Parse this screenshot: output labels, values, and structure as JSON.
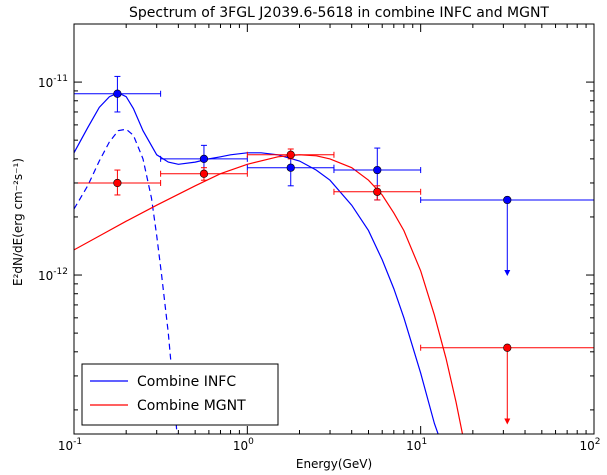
{
  "chart_data": {
    "type": "scatter",
    "title": "Spectrum of 3FGL J2039.6-5618 in combine INFC and MGNT",
    "xlabel": "Energy(GeV)",
    "ylabel": "E²dN/dE(erg cm⁻²s⁻¹)",
    "xscale": "log",
    "yscale": "log",
    "xlim": [
      0.1,
      100
    ],
    "ylim": [
      1.5e-13,
      2e-11
    ],
    "x_ticks": [
      {
        "value": 0.1,
        "base": "10",
        "exp": "-1"
      },
      {
        "value": 1,
        "base": "10",
        "exp": "0"
      },
      {
        "value": 10,
        "base": "10",
        "exp": "1"
      },
      {
        "value": 100,
        "base": "10",
        "exp": "2"
      }
    ],
    "y_ticks": [
      {
        "value": 1e-12,
        "base": "10",
        "exp": "-12"
      },
      {
        "value": 1e-11,
        "base": "10",
        "exp": "-11"
      }
    ],
    "legend_position": "lower-left",
    "series": [
      {
        "name": "Combine INFC",
        "color": "#0000ff",
        "points": [
          {
            "x": 0.178,
            "y": 8.7e-12,
            "xlo": 0.1,
            "xhi": 0.316,
            "ylo": 7e-12,
            "yhi": 1.07e-11
          },
          {
            "x": 0.562,
            "y": 4e-12,
            "xlo": 0.316,
            "xhi": 1.0,
            "ylo": 3.35e-12,
            "yhi": 4.7e-12
          },
          {
            "x": 1.78,
            "y": 3.6e-12,
            "xlo": 1.0,
            "xhi": 3.16,
            "ylo": 2.9e-12,
            "yhi": 4.3e-12
          },
          {
            "x": 5.62,
            "y": 3.5e-12,
            "xlo": 3.16,
            "xhi": 10.0,
            "ylo": 2.45e-12,
            "yhi": 4.55e-12
          }
        ],
        "upper_limits": [
          {
            "x": 31.6,
            "y": 2.45e-12,
            "xlo": 10.0,
            "xhi": 100.0,
            "arrow_to": 1e-12
          }
        ]
      },
      {
        "name": "Combine MGNT",
        "color": "#ff0000",
        "points": [
          {
            "x": 0.178,
            "y": 3e-12,
            "xlo": 0.1,
            "xhi": 0.316,
            "ylo": 2.6e-12,
            "yhi": 3.5e-12
          },
          {
            "x": 0.562,
            "y": 3.35e-12,
            "xlo": 0.316,
            "xhi": 1.0,
            "ylo": 3.1e-12,
            "yhi": 3.6e-12
          },
          {
            "x": 1.78,
            "y": 4.2e-12,
            "xlo": 1.0,
            "xhi": 3.16,
            "ylo": 4e-12,
            "yhi": 4.5e-12
          },
          {
            "x": 5.62,
            "y": 2.7e-12,
            "xlo": 3.16,
            "xhi": 10.0,
            "ylo": 2.45e-12,
            "yhi": 2.9e-12
          }
        ],
        "upper_limits": [
          {
            "x": 31.6,
            "y": 4.2e-13,
            "xlo": 10.0,
            "xhi": 100.0,
            "arrow_to": 1.7e-13
          }
        ]
      }
    ],
    "model_curves": [
      {
        "series": "Combine INFC",
        "style": "solid",
        "color": "#0000ff",
        "x": [
          0.1,
          0.12,
          0.14,
          0.16,
          0.18,
          0.2,
          0.22,
          0.25,
          0.3,
          0.35,
          0.4,
          0.5,
          0.6,
          0.7,
          0.8,
          1.0,
          1.2,
          1.5,
          2.0,
          2.5,
          3.0,
          4.0,
          5.0,
          6.0,
          7.0,
          8.0,
          10.0,
          12.0,
          14.0,
          15.2
        ],
        "y": [
          4.3e-12,
          5.8e-12,
          7.4e-12,
          8.4e-12,
          8.8e-12,
          8.4e-12,
          7.3e-12,
          5.6e-12,
          4.2e-12,
          3.85e-12,
          3.75e-12,
          3.85e-12,
          4e-12,
          4.1e-12,
          4.2e-12,
          4.3e-12,
          4.3e-12,
          4.2e-12,
          3.9e-12,
          3.5e-12,
          3.1e-12,
          2.3e-12,
          1.7e-12,
          1.2e-12,
          8.5e-13,
          6e-13,
          3.1e-13,
          1.7e-13,
          1.15e-13,
          9e-14
        ]
      },
      {
        "series": "Combine INFC",
        "style": "dashed",
        "color": "#0000ff",
        "x": [
          0.1,
          0.12,
          0.14,
          0.16,
          0.18,
          0.2,
          0.22,
          0.25,
          0.28,
          0.3,
          0.32,
          0.35,
          0.38,
          0.4
        ],
        "y": [
          2.2e-12,
          2.9e-12,
          3.9e-12,
          4.9e-12,
          5.6e-12,
          5.7e-12,
          5.3e-12,
          4e-12,
          2.5e-12,
          1.6e-12,
          1e-12,
          5e-13,
          2.2e-13,
          1.2e-13
        ]
      },
      {
        "series": "Combine MGNT",
        "style": "solid",
        "color": "#ff0000",
        "x": [
          0.1,
          0.15,
          0.2,
          0.3,
          0.5,
          0.7,
          1.0,
          1.5,
          2.0,
          2.5,
          3.0,
          4.0,
          5.0,
          6.0,
          7.0,
          8.0,
          10.0,
          12.0,
          14.0,
          16.0,
          18.0,
          18.9
        ],
        "y": [
          1.35e-12,
          1.65e-12,
          1.9e-12,
          2.3e-12,
          2.9e-12,
          3.35e-12,
          3.75e-12,
          4.1e-12,
          4.2e-12,
          4.15e-12,
          4e-12,
          3.6e-12,
          3.1e-12,
          2.6e-12,
          2.1e-12,
          1.7e-12,
          1.05e-12,
          6.2e-13,
          3.7e-13,
          2.2e-13,
          1.3e-13,
          1.1e-13
        ]
      }
    ]
  }
}
